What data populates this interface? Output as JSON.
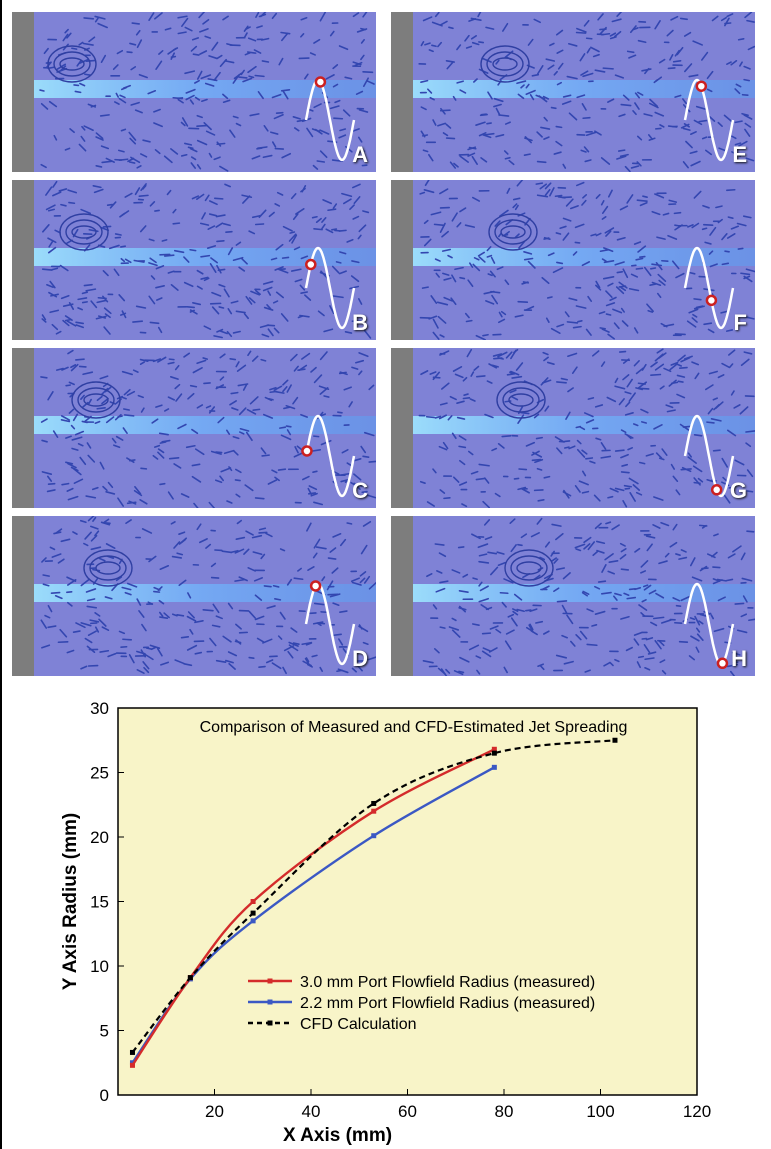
{
  "colors": {
    "panel_bg": "#7f82d6",
    "wall": "#7d7d7d",
    "plot_bg": "#f8f4c8",
    "red_series": "#d42b2b",
    "blue_series": "#3b58c4",
    "cfd_series": "#000000"
  },
  "panels": [
    {
      "label": "A",
      "phase": 0.3
    },
    {
      "label": "E",
      "phase": 0.34
    },
    {
      "label": "B",
      "phase": 0.1
    },
    {
      "label": "F",
      "phase": 0.55
    },
    {
      "label": "C",
      "phase": 0.02
    },
    {
      "label": "G",
      "phase": 0.66
    },
    {
      "label": "D",
      "phase": 0.2
    },
    {
      "label": "H",
      "phase": 0.78
    }
  ],
  "chart_data": {
    "type": "line",
    "title": "Comparison of Measured and CFD-Estimated Jet Spreading",
    "xlabel": "X Axis (mm)",
    "ylabel": "Y Axis Radius (mm)",
    "xlim": [
      0,
      120
    ],
    "ylim": [
      0,
      30
    ],
    "xticks": [
      20,
      40,
      60,
      80,
      100,
      120
    ],
    "yticks": [
      0,
      5,
      10,
      15,
      20,
      25,
      30
    ],
    "grid": false,
    "legend_position": "lower-right",
    "series": [
      {
        "name": "3.0 mm Port Flowfield Radius (measured)",
        "style": "solid",
        "color": "#d42b2b",
        "x": [
          3,
          15,
          28,
          53,
          78
        ],
        "y": [
          2.3,
          9.1,
          15.0,
          22.0,
          26.8
        ]
      },
      {
        "name": "2.2 mm Port Flowfield Radius (measured)",
        "style": "solid",
        "color": "#3b58c4",
        "x": [
          3,
          15,
          28,
          53,
          78
        ],
        "y": [
          2.5,
          9.0,
          13.5,
          20.1,
          25.4
        ]
      },
      {
        "name": "CFD Calculation",
        "style": "dashed",
        "color": "#000000",
        "x": [
          3,
          15,
          28,
          53,
          78,
          103
        ],
        "y": [
          3.3,
          9.1,
          14.1,
          22.6,
          26.5,
          27.5
        ]
      }
    ]
  }
}
